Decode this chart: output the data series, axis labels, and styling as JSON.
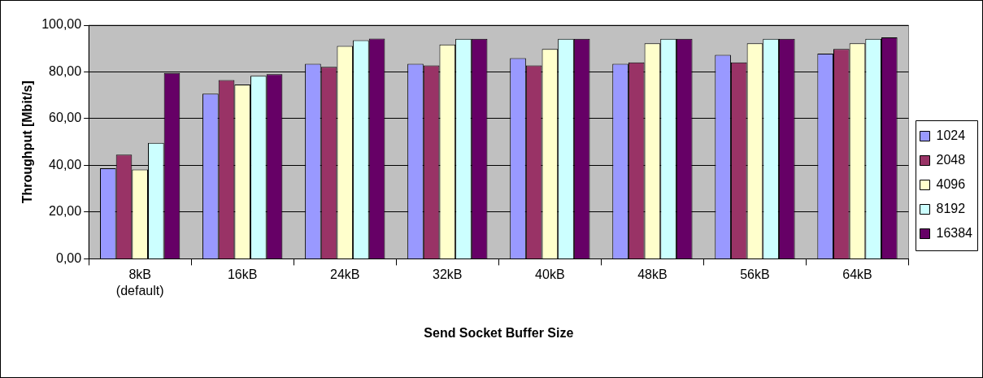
{
  "chart_data": {
    "type": "bar",
    "xlabel": "Send Socket Buffer Size",
    "ylabel": "Throughput [Mbit/s]",
    "categories": [
      "8kB\n(default)",
      "16kB",
      "24kB",
      "32kB",
      "40kB",
      "48kB",
      "56kB",
      "64kB"
    ],
    "series": [
      {
        "name": "1024",
        "color": "#9999ff",
        "values": [
          38.8,
          70.7,
          83.5,
          83.5,
          85.9,
          83.5,
          87.3,
          87.8
        ]
      },
      {
        "name": "2048",
        "color": "#993366",
        "values": [
          44.6,
          76.5,
          82.2,
          82.8,
          82.8,
          84.1,
          84.1,
          89.8
        ]
      },
      {
        "name": "4096",
        "color": "#ffffcc",
        "values": [
          38.2,
          74.6,
          91.1,
          91.7,
          89.8,
          92.3,
          92.3,
          92.3
        ]
      },
      {
        "name": "8192",
        "color": "#ccffff",
        "values": [
          49.6,
          78.3,
          93.6,
          94.2,
          94.2,
          94.2,
          94.2,
          94.2
        ]
      },
      {
        "name": "16384",
        "color": "#660066",
        "values": [
          79.6,
          79.0,
          94.3,
          94.2,
          94.2,
          94.2,
          94.2,
          94.8
        ]
      }
    ],
    "ylim": [
      0,
      100
    ],
    "yticks": [
      {
        "value": 0,
        "label": "0,00"
      },
      {
        "value": 20,
        "label": "20,00"
      },
      {
        "value": 40,
        "label": "40,00"
      },
      {
        "value": 60,
        "label": "60,00"
      },
      {
        "value": 80,
        "label": "80,00"
      },
      {
        "value": 100,
        "label": "100,00"
      }
    ],
    "grid": "y",
    "legend": "right"
  }
}
